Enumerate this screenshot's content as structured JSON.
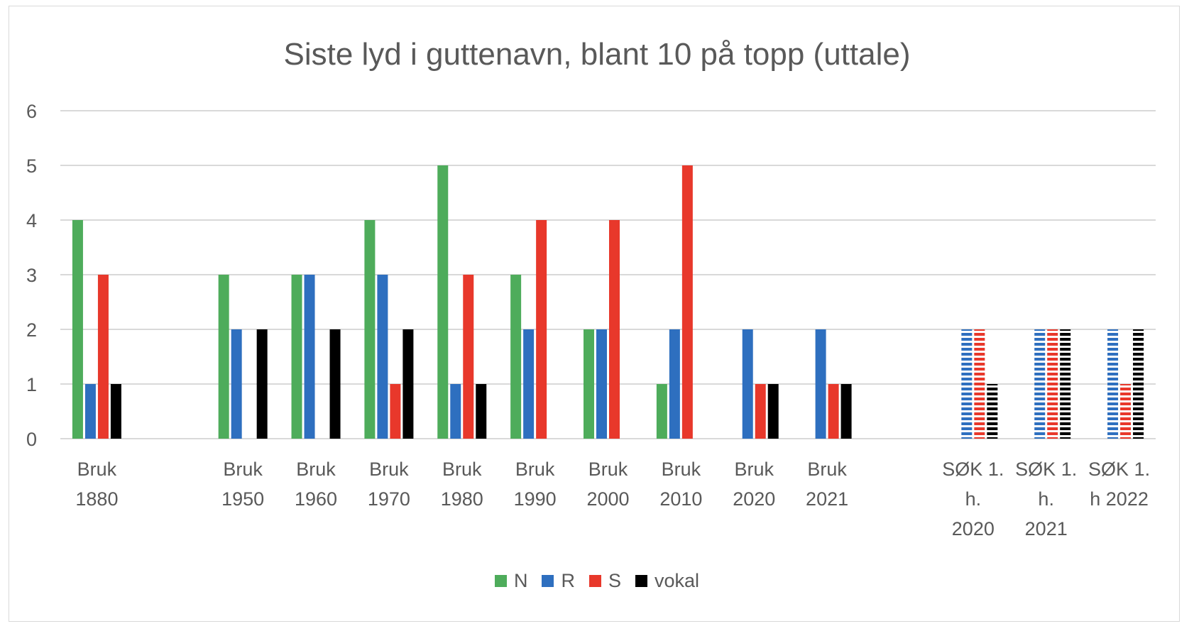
{
  "chart_data": {
    "type": "bar",
    "title": "Siste lyd i guttenavn, blant 10 på topp (uttale)",
    "xlabel": "",
    "ylabel": "",
    "ylim": [
      0,
      6
    ],
    "yticks": [
      0,
      1,
      2,
      3,
      4,
      5,
      6
    ],
    "grid": true,
    "legend_position": "bottom",
    "categories": [
      [
        "Bruk",
        "1880"
      ],
      [],
      [
        "Bruk",
        "1950"
      ],
      [
        "Bruk",
        "1960"
      ],
      [
        "Bruk",
        "1970"
      ],
      [
        "Bruk",
        "1980"
      ],
      [
        "Bruk",
        "1990"
      ],
      [
        "Bruk",
        "2000"
      ],
      [
        "Bruk",
        "2010"
      ],
      [
        "Bruk",
        "2020"
      ],
      [
        "Bruk",
        "2021"
      ],
      [],
      [
        "SØK 1.",
        "h.",
        "2020"
      ],
      [
        "SØK 1.",
        "h.",
        "2021"
      ],
      [
        "SØK 1.",
        "h 2022"
      ]
    ],
    "series": [
      {
        "name": "N",
        "color": "#4eac5b",
        "values": [
          4,
          null,
          3,
          3,
          4,
          5,
          3,
          2,
          1,
          null,
          null,
          null,
          null,
          null,
          null
        ]
      },
      {
        "name": "R",
        "color": "#2e6fbf",
        "values": [
          1,
          null,
          2,
          3,
          3,
          1,
          2,
          2,
          2,
          2,
          2,
          null,
          2,
          2,
          2
        ]
      },
      {
        "name": "S",
        "color": "#e8382b",
        "values": [
          3,
          null,
          null,
          null,
          1,
          3,
          4,
          4,
          5,
          1,
          1,
          null,
          2,
          2,
          1
        ]
      },
      {
        "name": "vokal",
        "color": "#000000",
        "values": [
          1,
          null,
          2,
          2,
          2,
          1,
          null,
          null,
          null,
          1,
          1,
          null,
          1,
          2,
          2
        ]
      }
    ],
    "dashed_categories": [
      12,
      13,
      14
    ]
  }
}
